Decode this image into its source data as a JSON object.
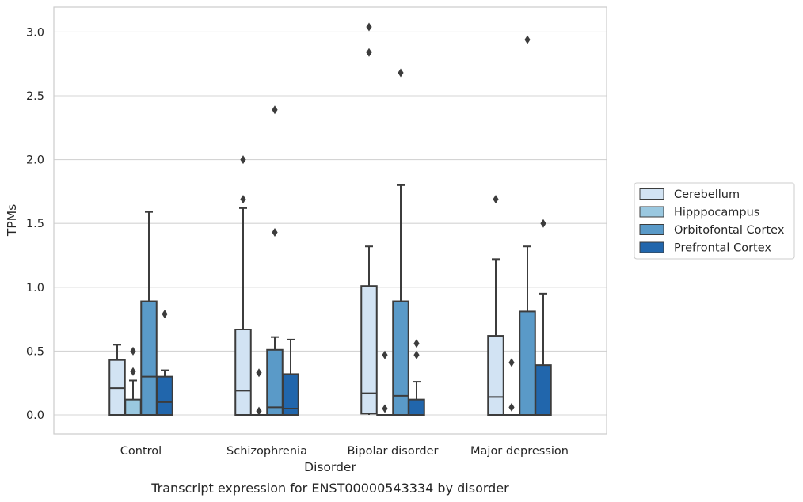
{
  "chart_data": {
    "type": "boxplot",
    "caption": "Transcript expression for ENST00000543334 by disorder",
    "xlabel": "Disorder",
    "ylabel": "TPMs",
    "ylim": [
      -0.15,
      3.2
    ],
    "yticks": [
      "0.0",
      "0.5",
      "1.0",
      "1.5",
      "2.0",
      "2.5",
      "3.0"
    ],
    "grid": "horizontal",
    "legend_position": "right",
    "categories": [
      "Control",
      "Schizophrenia",
      "Bipolar disorder",
      "Major depression"
    ],
    "series": [
      {
        "name": "Cerebellum",
        "color": "#d2e3f3",
        "boxes": [
          {
            "whislo": 0.0,
            "q1": 0.0,
            "med": 0.21,
            "q3": 0.43,
            "whishi": 0.55,
            "fliers": []
          },
          {
            "whislo": 0.0,
            "q1": 0.0,
            "med": 0.19,
            "q3": 0.67,
            "whishi": 1.62,
            "fliers": [
              1.69,
              2.0
            ]
          },
          {
            "whislo": 0.0,
            "q1": 0.01,
            "med": 0.17,
            "q3": 1.01,
            "whishi": 1.32,
            "fliers": [
              2.84,
              3.04
            ]
          },
          {
            "whislo": 0.0,
            "q1": 0.0,
            "med": 0.14,
            "q3": 0.62,
            "whishi": 1.22,
            "fliers": [
              1.69
            ]
          }
        ]
      },
      {
        "name": "Hipppocampus",
        "color": "#9ac8e0",
        "boxes": [
          {
            "whislo": 0.0,
            "q1": 0.0,
            "med": 0.0,
            "q3": 0.12,
            "whishi": 0.27,
            "fliers": [
              0.34,
              0.5
            ]
          },
          {
            "whislo": 0.0,
            "q1": 0.0,
            "med": 0.0,
            "q3": 0.0,
            "whishi": 0.0,
            "fliers": [
              0.03,
              0.33
            ]
          },
          {
            "whislo": 0.0,
            "q1": 0.0,
            "med": 0.0,
            "q3": 0.0,
            "whishi": 0.0,
            "fliers": [
              0.05,
              0.47
            ]
          },
          {
            "whislo": 0.0,
            "q1": 0.0,
            "med": 0.0,
            "q3": 0.0,
            "whishi": 0.0,
            "fliers": [
              0.06,
              0.41
            ]
          }
        ]
      },
      {
        "name": "Orbitofontal Cortex",
        "color": "#5a9ac8",
        "boxes": [
          {
            "whislo": 0.0,
            "q1": 0.0,
            "med": 0.3,
            "q3": 0.89,
            "whishi": 1.59,
            "fliers": []
          },
          {
            "whislo": 0.0,
            "q1": 0.0,
            "med": 0.06,
            "q3": 0.51,
            "whishi": 0.61,
            "fliers": [
              1.43,
              2.39
            ]
          },
          {
            "whislo": 0.0,
            "q1": 0.0,
            "med": 0.15,
            "q3": 0.89,
            "whishi": 1.8,
            "fliers": [
              2.68
            ]
          },
          {
            "whislo": 0.0,
            "q1": 0.0,
            "med": 0.0,
            "q3": 0.81,
            "whishi": 1.32,
            "fliers": [
              2.94
            ]
          }
        ]
      },
      {
        "name": "Prefrontal Cortex",
        "color": "#2166ac",
        "boxes": [
          {
            "whislo": 0.0,
            "q1": 0.0,
            "med": 0.1,
            "q3": 0.3,
            "whishi": 0.35,
            "fliers": [
              0.79
            ]
          },
          {
            "whislo": 0.0,
            "q1": 0.0,
            "med": 0.05,
            "q3": 0.32,
            "whishi": 0.59,
            "fliers": []
          },
          {
            "whislo": 0.0,
            "q1": 0.0,
            "med": 0.0,
            "q3": 0.12,
            "whishi": 0.26,
            "fliers": [
              0.47,
              0.56
            ]
          },
          {
            "whislo": 0.0,
            "q1": 0.0,
            "med": 0.0,
            "q3": 0.39,
            "whishi": 0.95,
            "fliers": [
              1.5
            ]
          }
        ]
      }
    ]
  }
}
